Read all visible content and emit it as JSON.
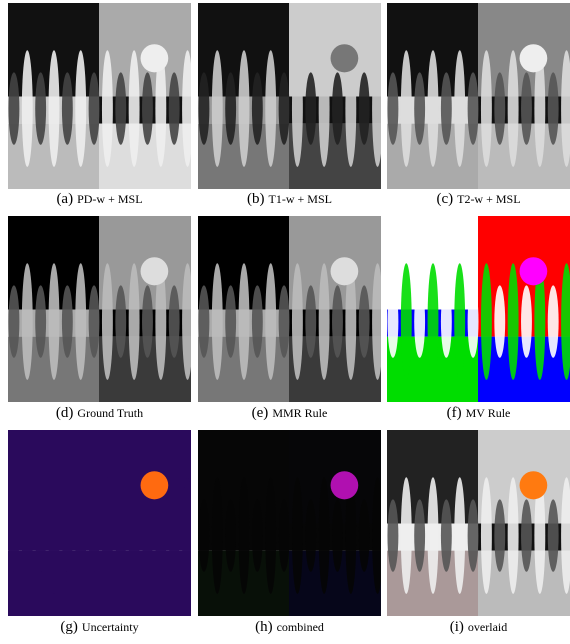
{
  "panels": [
    {
      "label": "(a)",
      "caption": "PD-w + MSL"
    },
    {
      "label": "(b)",
      "caption": "T1-w + MSL"
    },
    {
      "label": "(c)",
      "caption": "T2-w + MSL"
    },
    {
      "label": "(d)",
      "caption": "Ground Truth"
    },
    {
      "label": "(e)",
      "caption": "MMR Rule"
    },
    {
      "label": "(f)",
      "caption": "MV Rule"
    },
    {
      "label": "(g)",
      "caption": "Uncertainty"
    },
    {
      "label": "(h)",
      "caption": "combined"
    },
    {
      "label": "(i)",
      "caption": "overlaid"
    }
  ]
}
